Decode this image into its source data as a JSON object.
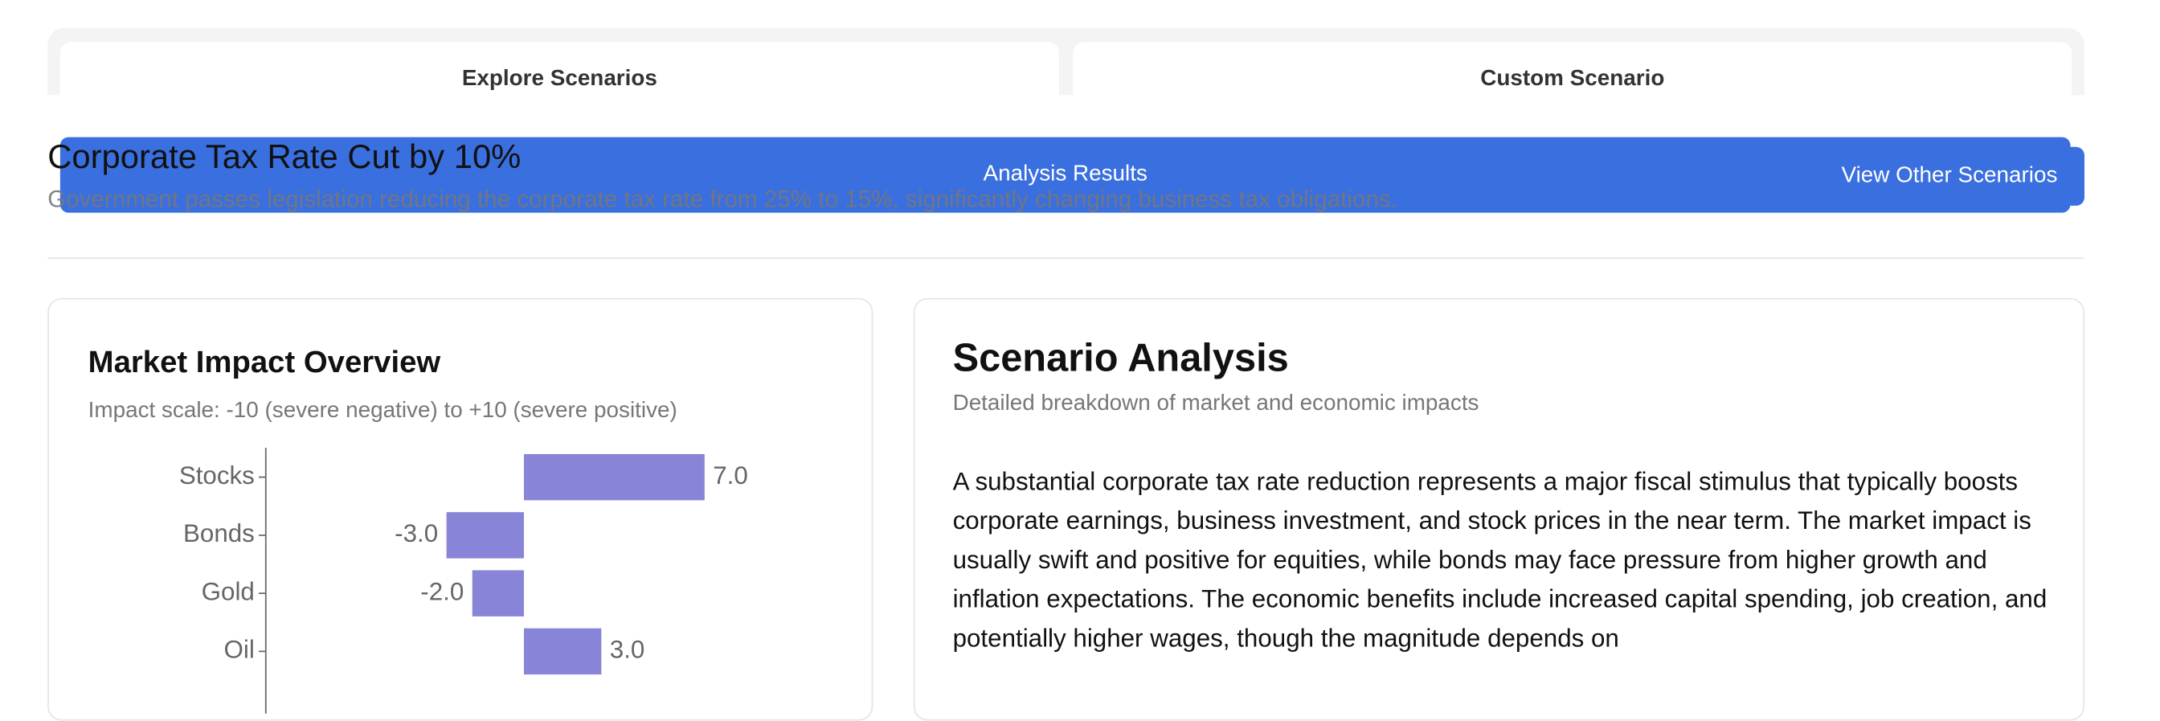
{
  "tabs": [
    "Explore Scenarios",
    "Custom Scenario"
  ],
  "scenario": {
    "title": "Corporate Tax Rate Cut by 10%",
    "description": "Government passes legislation reducing the corporate tax rate from 25% to 15%, significantly changing business tax obligations."
  },
  "banner": {
    "label": "Analysis Results",
    "button": "View Other Scenarios"
  },
  "market_card": {
    "title": "Market Impact Overview",
    "subtitle": "Impact scale: -10 (severe negative) to +10 (severe positive)",
    "chart_data": {
      "type": "barh",
      "categories": [
        "Stocks",
        "Bonds",
        "Gold",
        "Oil"
      ],
      "values": [
        7,
        -3,
        -2,
        3
      ],
      "value_labels": [
        "7.0",
        "-3.0",
        "-2.0",
        "3.0"
      ],
      "color": "#8884d8",
      "xlim": [
        -10,
        10
      ]
    }
  },
  "analysis_card": {
    "title": "Scenario Analysis",
    "subtitle": "Detailed breakdown of market and economic impacts",
    "body": "A substantial corporate tax rate reduction represents a major fiscal stimulus that typically boosts corporate earnings, business investment, and stock prices in the near term. The market impact is usually swift and positive for equities, while bonds may face pressure from higher growth and inflation expectations. The economic benefits include increased capital spending, job creation, and potentially higher wages, though the magnitude depends on"
  }
}
